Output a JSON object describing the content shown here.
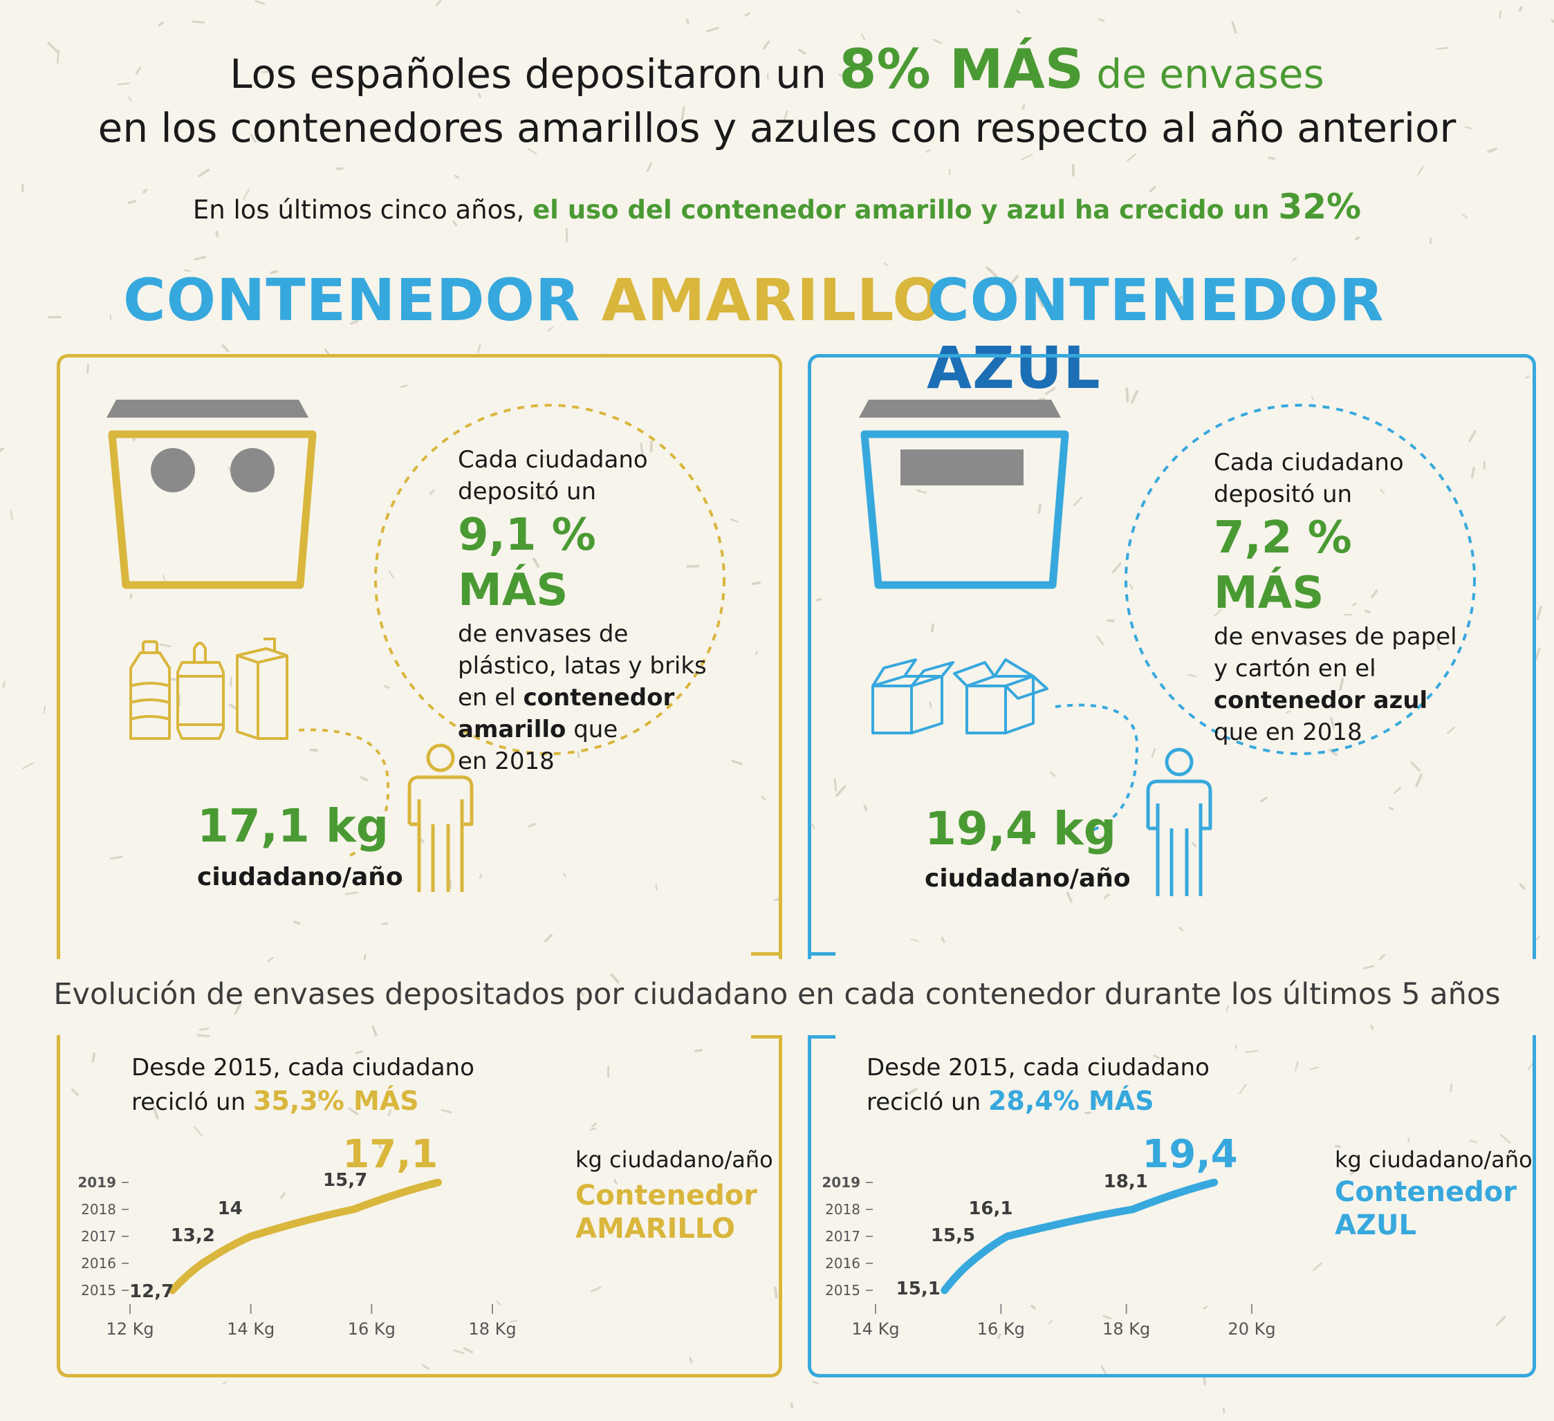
{
  "headline": {
    "line1_a": "Los españoles depositaron un ",
    "line1_big": "8% MÁS",
    "line1_b": " de envases",
    "line2": "en los contenedores amarillos y azules con respecto al año anterior"
  },
  "subheadline": {
    "a": "En los últimos cinco años, ",
    "b": "el uso del contenedor amarillo y azul ha crecido un ",
    "c": "32%"
  },
  "yellow": {
    "title_a": "CONTENEDOR ",
    "title_b": "AMARILLO",
    "circle": {
      "l1": "Cada ciudadano",
      "l2": "depositó un",
      "pct": "9,1 % MÁS",
      "l3": "de envases de",
      "l4": "plástico, latas y briks",
      "l5a": "en el ",
      "l5b": "contenedor",
      "l6a": "amarillo",
      "l6b": " que",
      "l7": "en 2018"
    },
    "kg": "17,1 kg",
    "kg_sub": "ciudadano/año"
  },
  "blue": {
    "title_a": "CONTENEDOR ",
    "title_b": "AZUL",
    "circle": {
      "l1": "Cada ciudadano",
      "l2": "depositó un",
      "pct": "7,2 % MÁS",
      "l3": "de envases de papel",
      "l4": "y cartón en el",
      "l5": "contenedor azul",
      "l6": "que en 2018"
    },
    "kg": "19,4 kg",
    "kg_sub": "ciudadano/año"
  },
  "evolution_title": "Evolución de envases depositados por ciudadano en cada contenedor durante los últimos 5 años",
  "charts": {
    "yellow": {
      "intro1": "Desde 2015, cada ciudadano",
      "intro2a": "recicló un ",
      "intro2b": "35,3% MÁS",
      "final_value": "17,1",
      "unit": "kg ciudadano/año",
      "name1": "Contenedor",
      "name2": "AMARILLO"
    },
    "blue": {
      "intro1": "Desde 2015, cada ciudadano",
      "intro2a": "recicló un ",
      "intro2b": "28,4% MÁS",
      "final_value": "19,4",
      "unit": "kg ciudadano/año",
      "name1": "Contenedor",
      "name2": "AZUL"
    }
  },
  "colors": {
    "green": "#4a9a33",
    "yellow": "#d9b63c",
    "light_blue": "#36a8dd",
    "dark_blue": "#1c6fb5",
    "grey": "#8a8a8a"
  },
  "chart_data": [
    {
      "type": "line",
      "series": [
        {
          "name": "Contenedor AMARILLO",
          "x": [
            12.7,
            13.2,
            14,
            15.7,
            17.1
          ],
          "y": [
            2015,
            2016,
            2017,
            2018,
            2019
          ],
          "labels": [
            "12,7",
            "13,2",
            "14",
            "15,7",
            "17,1"
          ]
        }
      ],
      "xticks": [
        "12 Kg",
        "14 Kg",
        "16 Kg",
        "18 Kg"
      ],
      "xtick_values": [
        12,
        14,
        16,
        18
      ],
      "yticks": [
        "2015",
        "2016",
        "2017",
        "2018",
        "2019"
      ],
      "ytick_values": [
        2015,
        2016,
        2017,
        2018,
        2019
      ],
      "xlim": [
        12,
        19.5
      ],
      "ylim": [
        2015,
        2019
      ],
      "color": "#d9b63c"
    },
    {
      "type": "line",
      "series": [
        {
          "name": "Contenedor AZUL",
          "x": [
            15.1,
            15.5,
            16.1,
            18.1,
            19.4
          ],
          "y": [
            2015,
            2016,
            2017,
            2018,
            2019
          ],
          "labels": [
            "15,1",
            "15,5",
            "16,1",
            "18,1",
            "19,4"
          ]
        }
      ],
      "xticks": [
        "14 Kg",
        "16 Kg",
        "18 Kg",
        "20 Kg"
      ],
      "xtick_values": [
        14,
        16,
        18,
        20
      ],
      "yticks": [
        "2015",
        "2016",
        "2017",
        "2018",
        "2019"
      ],
      "ytick_values": [
        2015,
        2016,
        2017,
        2018,
        2019
      ],
      "xlim": [
        14,
        21.5
      ],
      "ylim": [
        2015,
        2019
      ],
      "color": "#36a8dd"
    }
  ]
}
